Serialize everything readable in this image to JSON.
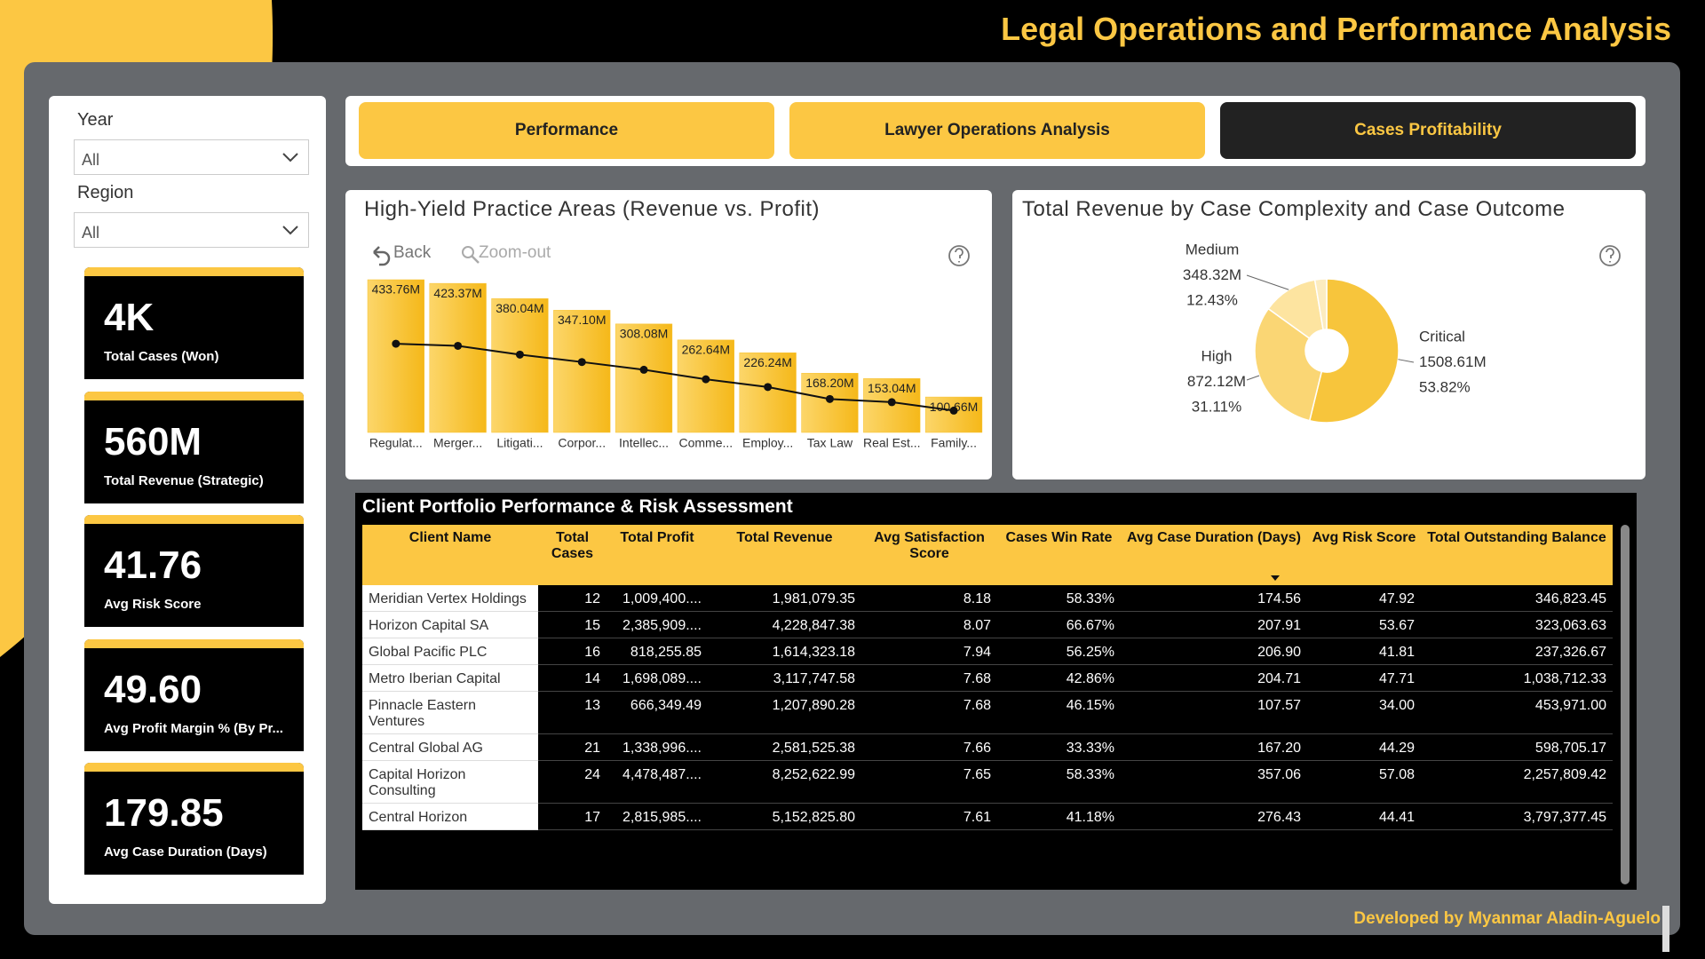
{
  "title": "Legal Operations and Performance Analysis",
  "filters": [
    {
      "label": "Year",
      "value": "All"
    },
    {
      "label": "Region",
      "value": "All"
    }
  ],
  "kpis": [
    {
      "value": "4K",
      "label": "Total Cases (Won)"
    },
    {
      "value": "560M",
      "label": "Total Revenue (Strategic)"
    },
    {
      "value": "41.76",
      "label": "Avg Risk Score"
    },
    {
      "value": "49.60",
      "label": "Avg Profit Margin % (By Pr..."
    },
    {
      "value": "179.85",
      "label": "Avg Case Duration (Days)"
    }
  ],
  "tabs": [
    "Performance",
    "Lawyer Operations Analysis",
    "Cases Profitability"
  ],
  "chart_data": [
    {
      "type": "bar",
      "title": "High-Yield Practice Areas (Revenue vs. Profit)",
      "toolbar": [
        "Back",
        "Zoom-out"
      ],
      "categories": [
        "Regulat...",
        "Merger...",
        "Litigati...",
        "Corpor...",
        "Intellec...",
        "Comme...",
        "Employ...",
        "Tax Law",
        "Real Est...",
        "Family..."
      ],
      "series": [
        {
          "type": "bar",
          "color": "#f8c12e",
          "values": [
            433.76,
            423.37,
            380.04,
            347.1,
            308.08,
            262.64,
            226.24,
            168.2,
            153.04,
            100.66
          ],
          "value_labels": [
            "433.76M",
            "423.37M",
            "380.04M",
            "347.10M",
            "308.08M",
            "262.64M",
            "226.24M",
            "168.20M",
            "153.04M",
            "100.66M"
          ]
        },
        {
          "type": "line",
          "color": "#111111",
          "values": [
            252,
            246,
            221,
            200,
            178,
            151,
            129,
            95,
            86,
            62
          ]
        }
      ]
    },
    {
      "type": "pie",
      "title": "Total Revenue by Case Complexity and Case Outcome",
      "categories": [
        "Critical",
        "High",
        "Medium",
        null
      ],
      "values": [
        1508.61,
        872.12,
        348.32,
        74.05
      ],
      "value_labels": [
        "1508.61M",
        "872.12M",
        "348.32M",
        null
      ],
      "percent_labels": [
        "53.82%",
        "31.11%",
        "12.43%",
        null
      ],
      "colors": [
        "#f7c53c",
        "#fad674",
        "#fde4a0",
        "#fcecc0"
      ]
    }
  ],
  "table": {
    "title": "Client Portfolio Performance & Risk Assessment",
    "columns": [
      "Client Name",
      "Total Cases",
      "Total Profit",
      "Total Revenue",
      "Avg Satisfaction Score",
      "Cases Win Rate",
      "Avg Case Duration (Days)",
      "Avg Risk Score",
      "Total Outstanding Balance"
    ],
    "rows": [
      [
        "Meridian Vertex Holdings",
        "12",
        "1,009,400....",
        "1,981,079.35",
        "8.18",
        "58.33%",
        "174.56",
        "47.92",
        "346,823.45"
      ],
      [
        "Horizon Capital SA",
        "15",
        "2,385,909....",
        "4,228,847.38",
        "8.07",
        "66.67%",
        "207.91",
        "53.67",
        "323,063.63"
      ],
      [
        "Global Pacific PLC",
        "16",
        "818,255.85",
        "1,614,323.18",
        "7.94",
        "56.25%",
        "206.90",
        "41.81",
        "237,326.67"
      ],
      [
        "Metro Iberian Capital",
        "14",
        "1,698,089....",
        "3,117,747.58",
        "7.68",
        "42.86%",
        "204.71",
        "47.71",
        "1,038,712.33"
      ],
      [
        "Pinnacle Eastern Ventures",
        "13",
        "666,349.49",
        "1,207,890.28",
        "7.68",
        "46.15%",
        "107.57",
        "34.00",
        "453,971.00"
      ],
      [
        "Central Global AG",
        "21",
        "1,338,996....",
        "2,581,525.38",
        "7.66",
        "33.33%",
        "167.20",
        "44.29",
        "598,705.17"
      ],
      [
        "Capital Horizon Consulting",
        "24",
        "4,478,487....",
        "8,252,622.99",
        "7.65",
        "58.33%",
        "357.06",
        "57.08",
        "2,257,809.42"
      ],
      [
        "Central Horizon",
        "17",
        "2,815,985....",
        "5,152,825.80",
        "7.61",
        "41.18%",
        "276.43",
        "44.41",
        "3,797,377.45"
      ]
    ]
  },
  "footer": "Developed by Myanmar Aladin-Aguelo"
}
